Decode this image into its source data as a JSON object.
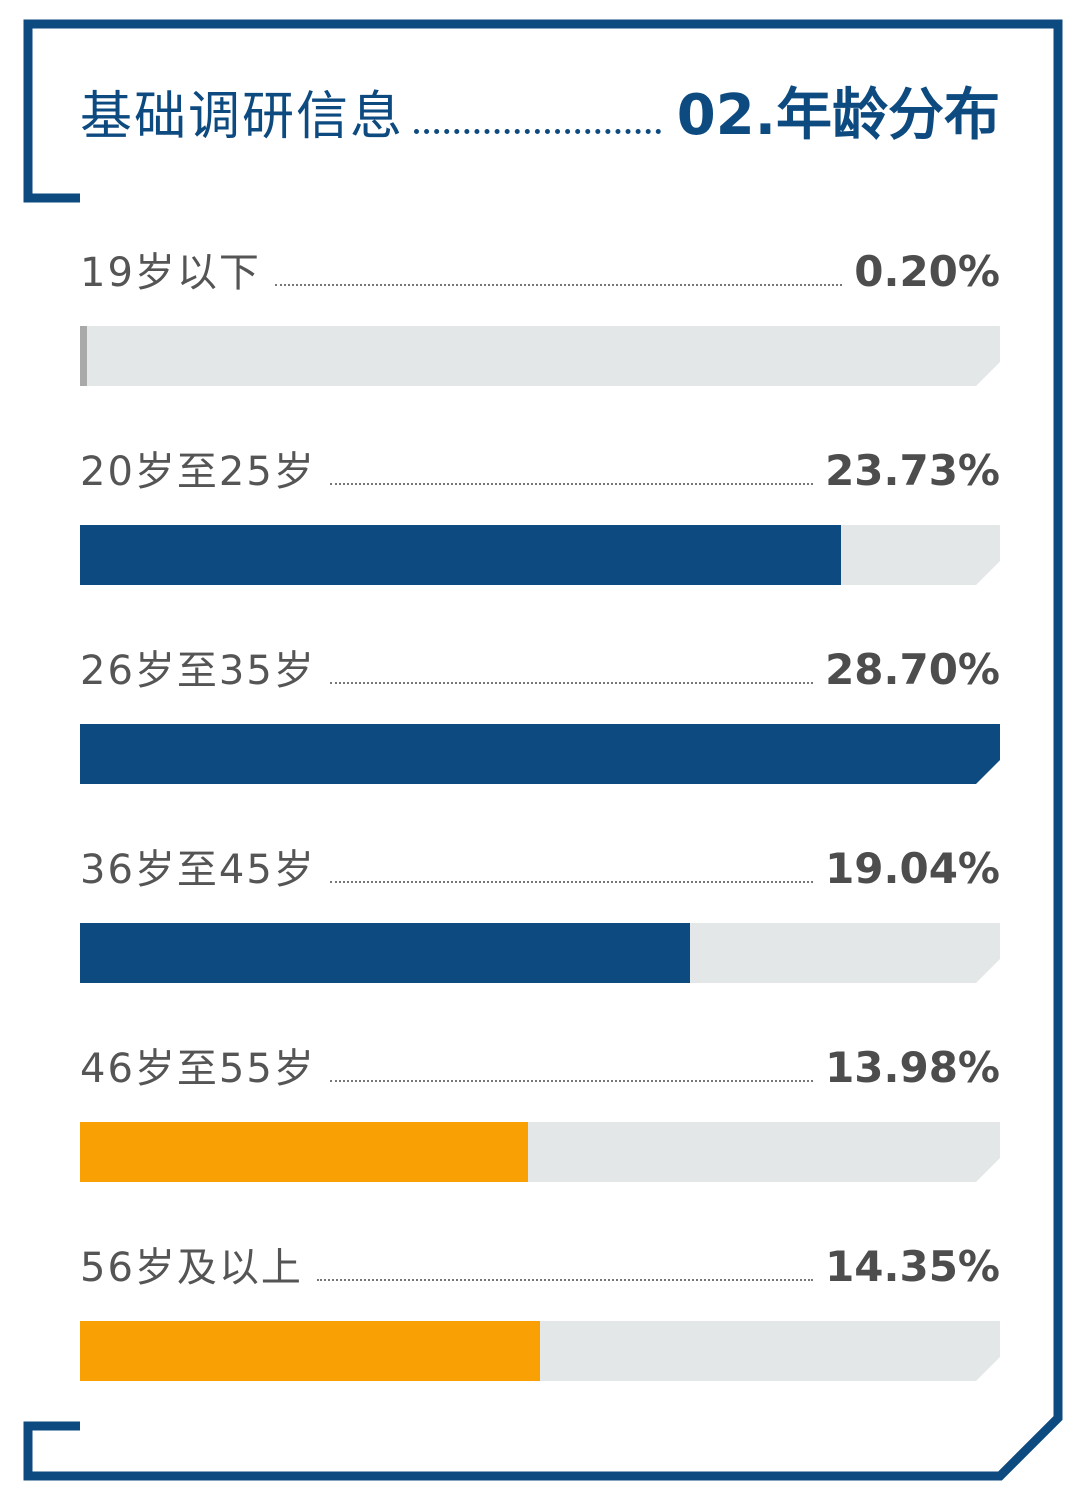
{
  "header": {
    "section_title": "基础调研信息",
    "chart_title": "02.年龄分布"
  },
  "colors": {
    "frame": "#0d4a80",
    "bar_blue": "#0d4a80",
    "bar_orange": "#f9a005",
    "bar_track": "#e4e7e8"
  },
  "chart_data": {
    "type": "bar",
    "orientation": "horizontal",
    "title": "02.年龄分布",
    "categories": [
      "19岁以下",
      "20岁至25岁",
      "26岁至35岁",
      "36岁至45岁",
      "46岁至55岁",
      "56岁及以上"
    ],
    "values": [
      0.2,
      23.73,
      28.7,
      19.04,
      13.98,
      14.35
    ],
    "value_labels": [
      "0.20%",
      "23.73%",
      "28.70%",
      "19.04%",
      "13.98%",
      "14.35%"
    ],
    "bar_colors": [
      "#a9a9a9",
      "#0d4a80",
      "#0d4a80",
      "#0d4a80",
      "#f9a005",
      "#f9a005"
    ],
    "xlim": [
      0,
      28.7
    ],
    "grid": false,
    "legend": "none"
  }
}
